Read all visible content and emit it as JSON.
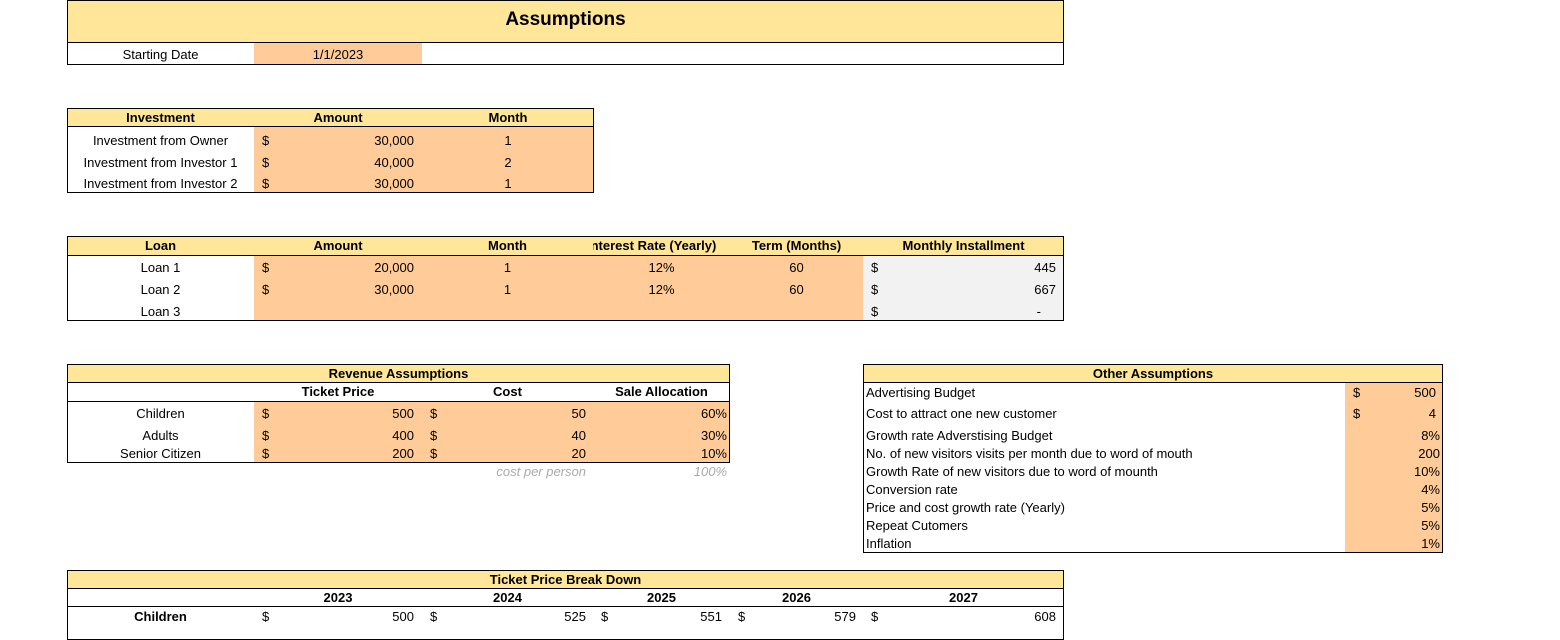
{
  "title": "Assumptions",
  "starting_date": {
    "label": "Starting Date",
    "value": "1/1/2023"
  },
  "investment": {
    "headers": [
      "Investment",
      "Amount",
      "Month"
    ],
    "rows": [
      {
        "name": "Investment from Owner",
        "cur": "$",
        "amount": "30,000",
        "month": "1"
      },
      {
        "name": "Investment from Investor 1",
        "cur": "$",
        "amount": "40,000",
        "month": "2"
      },
      {
        "name": "Investment from Investor 2",
        "cur": "$",
        "amount": "30,000",
        "month": "1"
      }
    ]
  },
  "loan": {
    "headers": [
      "Loan",
      "Amount",
      "Month",
      "Interest Rate (Yearly)",
      "Term (Months)",
      "Monthly Installment"
    ],
    "rows": [
      {
        "name": "Loan 1",
        "cur": "$",
        "amount": "20,000",
        "month": "1",
        "rate": "12%",
        "term": "60",
        "icur": "$",
        "installment": "445"
      },
      {
        "name": "Loan 2",
        "cur": "$",
        "amount": "30,000",
        "month": "1",
        "rate": "12%",
        "term": "60",
        "icur": "$",
        "installment": "667"
      },
      {
        "name": "Loan 3",
        "icur": "$",
        "installment": "-"
      }
    ]
  },
  "revenue": {
    "title": "Revenue Assumptions",
    "headers": [
      "Ticket Price",
      "Cost",
      "Sale Allocation"
    ],
    "rows": [
      {
        "name": "Children",
        "pcur": "$",
        "price": "500",
        "ccur": "$",
        "cost": "50",
        "alloc": "60%"
      },
      {
        "name": "Adults",
        "pcur": "$",
        "price": "400",
        "ccur": "$",
        "cost": "40",
        "alloc": "30%"
      },
      {
        "name": "Senior Citizen",
        "pcur": "$",
        "price": "200",
        "ccur": "$",
        "cost": "20",
        "alloc": "10%"
      }
    ],
    "note": "cost per person",
    "total": "100%"
  },
  "other": {
    "title": "Other Assumptions",
    "rows": [
      {
        "label": "Advertising Budget",
        "cur": "$",
        "value": "500"
      },
      {
        "label": "Cost to attract one new customer",
        "cur": "$",
        "value": "4"
      },
      {
        "label": "Growth rate Adverstising Budget",
        "value": "8%"
      },
      {
        "label": "No. of new visitors visits per month due to word of mouth",
        "value": "200"
      },
      {
        "label": "Growth Rate of new visitors due to word of mounth",
        "value": "10%"
      },
      {
        "label": "Conversion rate",
        "value": "4%"
      },
      {
        "label": "Price and cost growth rate (Yearly)",
        "value": "5%"
      },
      {
        "label": "Repeat Cutomers",
        "value": "5%"
      },
      {
        "label": "Inflation",
        "value": "1%"
      }
    ]
  },
  "breakdown": {
    "title": "Ticket Price Break Down",
    "years": [
      "2023",
      "2024",
      "2025",
      "2026",
      "2027"
    ],
    "rows": [
      {
        "name": "Children",
        "cur": "$",
        "values": [
          "500",
          "525",
          "551",
          "579",
          "608"
        ]
      }
    ]
  },
  "colors": {
    "header": "#FFE699",
    "input": "#FFCC99",
    "calc": "#F2F2F2"
  }
}
